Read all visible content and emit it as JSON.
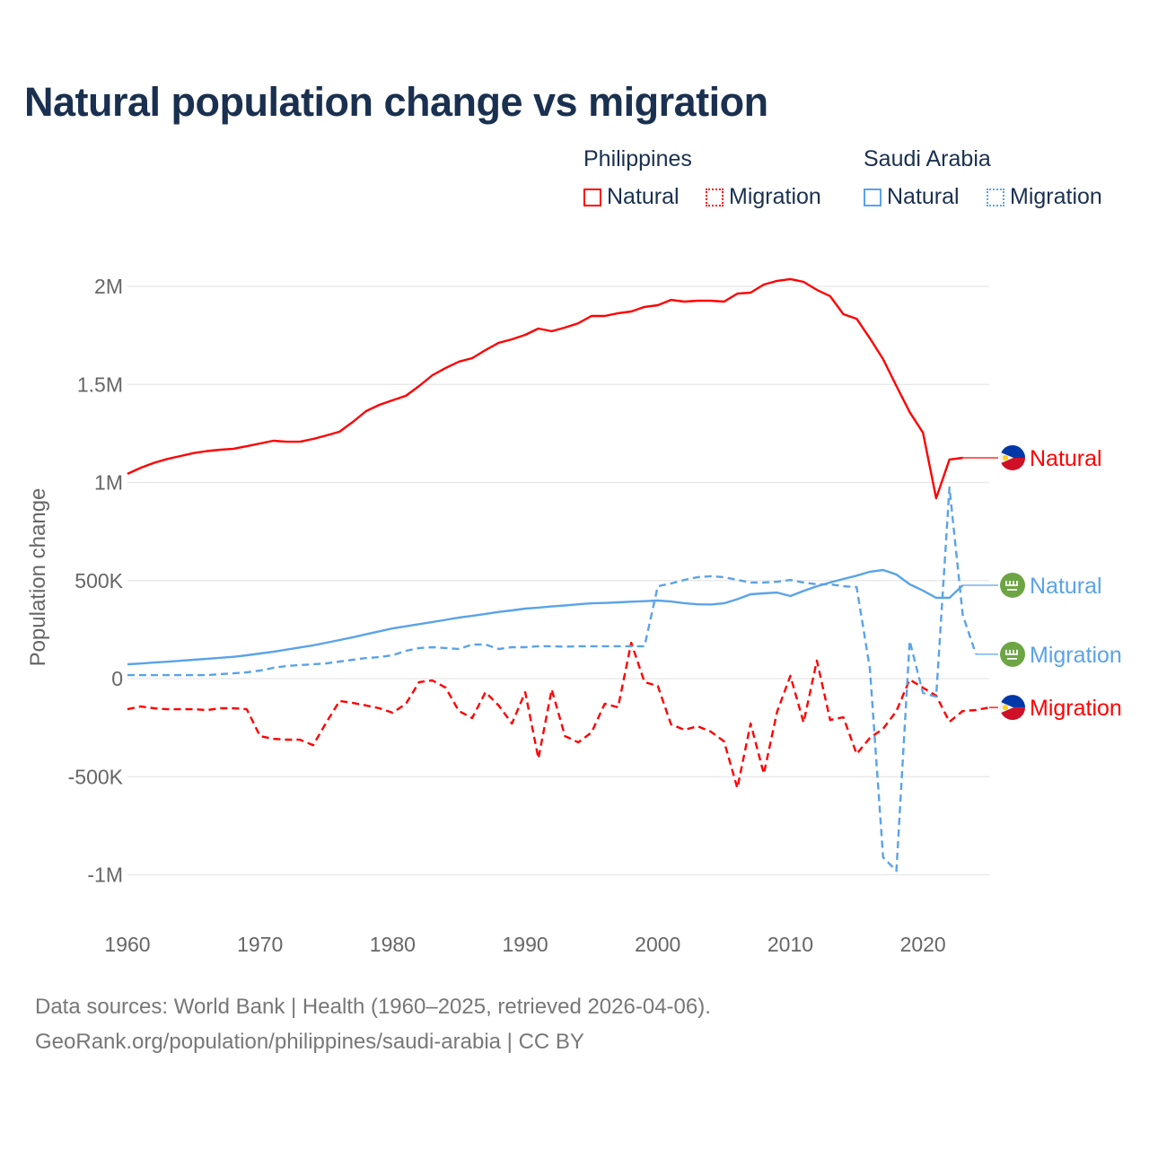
{
  "chart_data": {
    "type": "line",
    "title": "Natural population change vs migration",
    "xlabel": "",
    "ylabel": "Population change",
    "xlim": [
      1960,
      2025
    ],
    "ylim": [
      -1100000,
      2150000
    ],
    "x_ticks": [
      1960,
      1970,
      1980,
      1990,
      2000,
      2010,
      2020
    ],
    "x_tick_labels": [
      "1960",
      "1970",
      "1980",
      "1990",
      "2000",
      "2010",
      "2020"
    ],
    "y_ticks": [
      -1000000,
      -500000,
      0,
      500000,
      1000000,
      1500000,
      2000000
    ],
    "y_tick_labels": [
      "-1M",
      "-500K",
      "0",
      "500K",
      "1M",
      "1.5M",
      "2M"
    ],
    "grid": true,
    "legend_placement": "top-right",
    "legend_groups": [
      {
        "country": "Philippines",
        "items": [
          "Natural",
          "Migration"
        ]
      },
      {
        "country": "Saudi Arabia",
        "items": [
          "Natural",
          "Migration"
        ]
      }
    ],
    "start_year": 1960,
    "series": [
      {
        "name": "Philippines Natural",
        "country": "Philippines",
        "label": "Natural",
        "flag": "philippines-flag",
        "color": "#ff0000",
        "dash": false,
        "values_k": [
          1044,
          1075,
          1100,
          1120,
          1135,
          1150,
          1160,
          1167,
          1172,
          1185,
          1199,
          1213,
          1208,
          1208,
          1222,
          1240,
          1259,
          1309,
          1364,
          1396,
          1419,
          1442,
          1492,
          1547,
          1584,
          1616,
          1634,
          1675,
          1712,
          1730,
          1753,
          1785,
          1771,
          1790,
          1812,
          1849,
          1849,
          1863,
          1872,
          1895,
          1904,
          1931,
          1922,
          1927,
          1927,
          1922,
          1963,
          1968,
          2009,
          2028,
          2037,
          2023,
          1982,
          1950,
          1858,
          1835,
          1735,
          1629,
          1492,
          1359,
          1254,
          920,
          1117,
          1126
        ]
      },
      {
        "name": "Philippines Migration",
        "country": "Philippines",
        "label": "Migration",
        "flag": "philippines-flag",
        "color": "#ff0000",
        "dash": true,
        "values_k": [
          -156,
          -142,
          -151,
          -156,
          -156,
          -156,
          -160,
          -151,
          -151,
          -156,
          -293,
          -307,
          -311,
          -311,
          -339,
          -224,
          -114,
          -124,
          -137,
          -151,
          -174,
          -128,
          -18,
          -9,
          -46,
          -165,
          -201,
          -69,
          -137,
          -229,
          -69,
          -407,
          -55,
          -293,
          -325,
          -275,
          -128,
          -146,
          183,
          -18,
          -37,
          -233,
          -261,
          -243,
          -270,
          -320,
          -558,
          -229,
          -485,
          -169,
          14,
          -224,
          92,
          -211,
          -197,
          -384,
          -302,
          -256,
          -165,
          -5,
          -46,
          -87,
          -220,
          -165,
          -160,
          -147
        ]
      },
      {
        "name": "Saudi Arabia Natural",
        "country": "Saudi Arabia",
        "label": "Natural",
        "flag": "saudi-arabia-flag",
        "color": "#5aa3e8",
        "dash": false,
        "values_k": [
          73,
          77,
          82,
          86,
          91,
          96,
          101,
          106,
          111,
          119,
          128,
          137,
          148,
          159,
          170,
          183,
          197,
          211,
          226,
          241,
          256,
          267,
          278,
          289,
          300,
          311,
          320,
          330,
          340,
          348,
          357,
          362,
          368,
          373,
          379,
          384,
          386,
          389,
          392,
          395,
          398,
          393,
          385,
          379,
          378,
          384,
          405,
          430,
          435,
          439,
          421,
          447,
          471,
          490,
          508,
          525,
          545,
          554,
          531,
          481,
          449,
          412,
          412,
          476
        ]
      },
      {
        "name": "Saudi Arabia Migration",
        "country": "Saudi Arabia",
        "label": "Migration",
        "flag": "saudi-arabia-flag",
        "color": "#5aa3e8",
        "dash": true,
        "values_k": [
          18,
          18,
          18,
          18,
          18,
          18,
          18,
          23,
          27,
          32,
          41,
          55,
          64,
          69,
          73,
          78,
          87,
          96,
          105,
          110,
          119,
          142,
          156,
          160,
          156,
          151,
          174,
          174,
          151,
          160,
          160,
          165,
          165,
          163,
          165,
          165,
          165,
          165,
          165,
          165,
          471,
          485,
          503,
          517,
          522,
          517,
          503,
          490,
          490,
          494,
          503,
          490,
          481,
          481,
          471,
          467,
          50,
          -911,
          -980,
          192,
          -73,
          -92,
          975,
          325,
          124
        ]
      }
    ]
  },
  "legend": {
    "philippines": "Philippines",
    "saudi_arabia": "Saudi Arabia",
    "natural": "Natural",
    "migration": "Migration"
  },
  "footer": {
    "line1": "Data sources: World Bank | Health (1960–2025, retrieved 2026-04-06).",
    "line2": "GeoRank.org/population/philippines/saudi-arabia | CC BY"
  }
}
